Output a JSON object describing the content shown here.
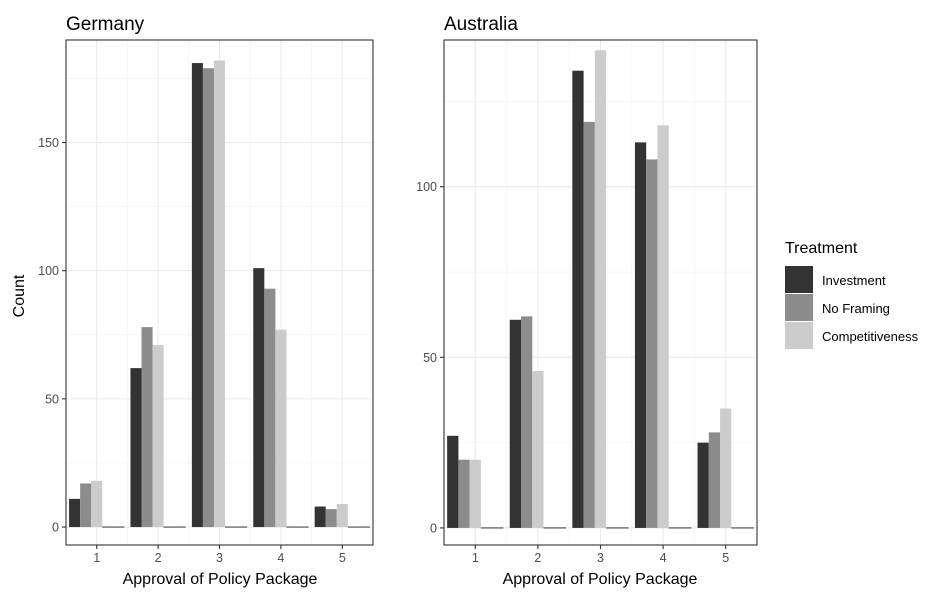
{
  "chart_data": {
    "type": "bar",
    "ylabel": "Count",
    "xlabel": "Approval of Policy Package",
    "legend": {
      "title": "Treatment",
      "placement": "right",
      "entries": [
        {
          "name": "Investment",
          "color": "#333333"
        },
        {
          "name": "No Framing",
          "color": "#8c8c8c"
        },
        {
          "name": "Competitiveness",
          "color": "#cccccc"
        }
      ]
    },
    "grid": true,
    "panels": [
      {
        "title": "Germany",
        "categories": [
          "1",
          "2",
          "3",
          "4",
          "5"
        ],
        "ylim": [
          -7,
          190
        ],
        "yticks": [
          0,
          50,
          100,
          150
        ],
        "series": [
          {
            "name": "Investment",
            "values": [
              11,
              62,
              181,
              101,
              8
            ]
          },
          {
            "name": "No Framing",
            "values": [
              17,
              78,
              179,
              93,
              7
            ]
          },
          {
            "name": "Competitiveness",
            "values": [
              18,
              71,
              182,
              77,
              9
            ]
          }
        ]
      },
      {
        "title": "Australia",
        "categories": [
          "1",
          "2",
          "3",
          "4",
          "5"
        ],
        "ylim": [
          -5,
          143
        ],
        "yticks": [
          0,
          50,
          100
        ],
        "series": [
          {
            "name": "Investment",
            "values": [
              27,
              61,
              134,
              113,
              25
            ]
          },
          {
            "name": "No Framing",
            "values": [
              20,
              62,
              119,
              108,
              28
            ]
          },
          {
            "name": "Competitiveness",
            "values": [
              20,
              46,
              140,
              118,
              35
            ]
          }
        ]
      }
    ]
  }
}
